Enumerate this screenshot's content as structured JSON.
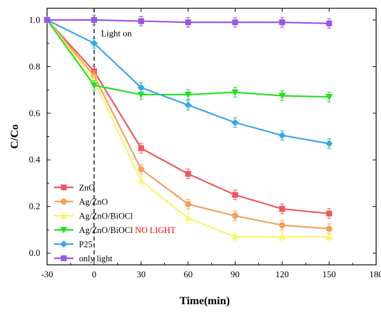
{
  "chart_data": {
    "type": "line",
    "xlabel": "Time(min)",
    "ylabel": "C/Co",
    "xlim": [
      -30,
      180
    ],
    "ylim": [
      -0.05,
      1.05
    ],
    "x_ticks": [
      -30,
      0,
      30,
      60,
      90,
      120,
      150,
      180
    ],
    "y_ticks": [
      0.0,
      0.2,
      0.4,
      0.6,
      0.8,
      1.0
    ],
    "x_tick_labels": [
      "-30",
      "0",
      "30",
      "60",
      "90",
      "120",
      "150",
      "180"
    ],
    "y_tick_labels": [
      "0.0",
      "0.2",
      "0.4",
      "0.6",
      "0.8",
      "1.0"
    ],
    "x": [
      -30,
      0,
      30,
      60,
      90,
      120,
      150
    ],
    "annotation": {
      "text": "Light on",
      "x": 0
    },
    "legend_position": "bottom-left",
    "series": [
      {
        "name": "ZnO",
        "color": "#f0575a",
        "marker": "square",
        "values": [
          1.0,
          0.78,
          0.45,
          0.34,
          0.25,
          0.19,
          0.17
        ]
      },
      {
        "name": "Ag/ZnO",
        "color": "#f5a05a",
        "marker": "circle",
        "values": [
          1.0,
          0.76,
          0.36,
          0.21,
          0.16,
          0.12,
          0.105
        ]
      },
      {
        "name": "Ag/ZnO/BiOCl",
        "color": "#f5f56e",
        "marker": "triangle-up",
        "values": [
          1.0,
          0.74,
          0.31,
          0.15,
          0.07,
          0.07,
          0.07
        ]
      },
      {
        "name": "Ag/ZnO/BiOCl",
        "name_suffix": "NO LIGHT",
        "suffix_color": "#ff0000",
        "color": "#22e022",
        "marker": "triangle-down",
        "values": [
          1.0,
          0.72,
          0.68,
          0.68,
          0.69,
          0.675,
          0.67
        ]
      },
      {
        "name": "P25",
        "color": "#35a8e8",
        "marker": "diamond",
        "values": [
          1.0,
          0.9,
          0.71,
          0.635,
          0.56,
          0.505,
          0.47
        ]
      },
      {
        "name": "only light",
        "color": "#9a55e8",
        "marker": "square",
        "values": [
          1.0,
          1.0,
          0.995,
          0.99,
          0.99,
          0.99,
          0.985
        ]
      }
    ]
  }
}
